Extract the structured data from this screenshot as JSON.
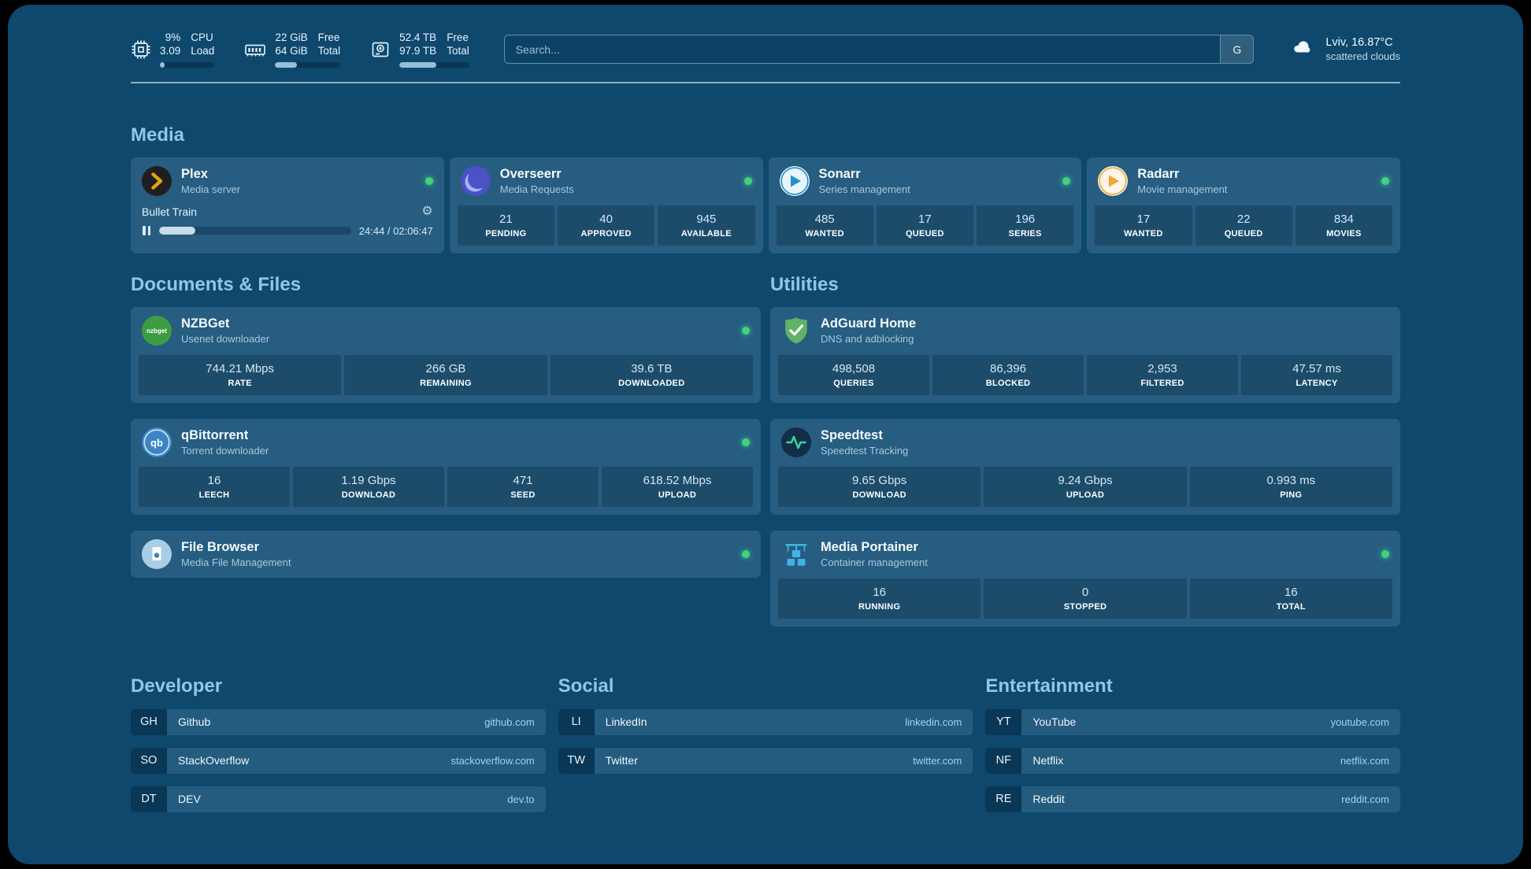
{
  "colors": {
    "background": "#0e486d",
    "accent": "#8fc7e9",
    "status_online": "#43d17c",
    "link": "#9ed2ef"
  },
  "topbar": {
    "cpu": {
      "value_top": "9%",
      "value_bottom": "3.09",
      "label_top": "CPU",
      "label_bottom": "Load",
      "progress": 9
    },
    "memory": {
      "value_top": "22 GiB",
      "value_bottom": "64 GiB",
      "label_top": "Free",
      "label_bottom": "Total",
      "progress": 34
    },
    "disk": {
      "value_top": "52.4 TB",
      "value_bottom": "97.9 TB",
      "label_top": "Free",
      "label_bottom": "Total",
      "progress": 53
    },
    "search": {
      "placeholder": "Search...",
      "provider_label": "G"
    },
    "weather": {
      "location": "Lviv, 16.87°C",
      "condition": "scattered clouds"
    }
  },
  "sections": {
    "media": {
      "title": "Media",
      "cards": [
        {
          "name": "Plex",
          "subtitle": "Media server",
          "status": "online",
          "now_playing": {
            "title": "Bullet Train",
            "time": "24:44 / 02:06:47",
            "progress": 19
          }
        },
        {
          "name": "Overseerr",
          "subtitle": "Media Requests",
          "status": "online",
          "stats": [
            {
              "value": "21",
              "label": "PENDING"
            },
            {
              "value": "40",
              "label": "APPROVED"
            },
            {
              "value": "945",
              "label": "AVAILABLE"
            }
          ]
        },
        {
          "name": "Sonarr",
          "subtitle": "Series management",
          "status": "online",
          "stats": [
            {
              "value": "485",
              "label": "WANTED"
            },
            {
              "value": "17",
              "label": "QUEUED"
            },
            {
              "value": "196",
              "label": "SERIES"
            }
          ]
        },
        {
          "name": "Radarr",
          "subtitle": "Movie management",
          "status": "online",
          "stats": [
            {
              "value": "17",
              "label": "WANTED"
            },
            {
              "value": "22",
              "label": "QUEUED"
            },
            {
              "value": "834",
              "label": "MOVIES"
            }
          ]
        }
      ]
    },
    "documents": {
      "title": "Documents & Files",
      "cards": [
        {
          "name": "NZBGet",
          "subtitle": "Usenet downloader",
          "status": "online",
          "stats": [
            {
              "value": "744.21 Mbps",
              "label": "RATE"
            },
            {
              "value": "266 GB",
              "label": "REMAINING"
            },
            {
              "value": "39.6 TB",
              "label": "DOWNLOADED"
            }
          ]
        },
        {
          "name": "qBittorrent",
          "subtitle": "Torrent downloader",
          "status": "online",
          "stats": [
            {
              "value": "16",
              "label": "LEECH"
            },
            {
              "value": "1.19 Gbps",
              "label": "DOWNLOAD"
            },
            {
              "value": "471",
              "label": "SEED"
            },
            {
              "value": "618.52 Mbps",
              "label": "UPLOAD"
            }
          ]
        },
        {
          "name": "File Browser",
          "subtitle": "Media File Management",
          "status": "online",
          "stats": []
        }
      ]
    },
    "utilities": {
      "title": "Utilities",
      "cards": [
        {
          "name": "AdGuard Home",
          "subtitle": "DNS and adblocking",
          "stats": [
            {
              "value": "498,508",
              "label": "QUERIES"
            },
            {
              "value": "86,396",
              "label": "BLOCKED"
            },
            {
              "value": "2,953",
              "label": "FILTERED"
            },
            {
              "value": "47.57 ms",
              "label": "LATENCY"
            }
          ]
        },
        {
          "name": "Speedtest",
          "subtitle": "Speedtest Tracking",
          "stats": [
            {
              "value": "9.65 Gbps",
              "label": "DOWNLOAD"
            },
            {
              "value": "9.24 Gbps",
              "label": "UPLOAD"
            },
            {
              "value": "0.993 ms",
              "label": "PING"
            }
          ]
        },
        {
          "name": "Media Portainer",
          "subtitle": "Container management",
          "status": "online",
          "stats": [
            {
              "value": "16",
              "label": "RUNNING"
            },
            {
              "value": "0",
              "label": "STOPPED"
            },
            {
              "value": "16",
              "label": "TOTAL"
            }
          ]
        }
      ]
    }
  },
  "bookmarks": [
    {
      "title": "Developer",
      "items": [
        {
          "abbr": "GH",
          "name": "Github",
          "domain": "github.com"
        },
        {
          "abbr": "SO",
          "name": "StackOverflow",
          "domain": "stackoverflow.com"
        },
        {
          "abbr": "DT",
          "name": "DEV",
          "domain": "dev.to"
        }
      ]
    },
    {
      "title": "Social",
      "items": [
        {
          "abbr": "LI",
          "name": "LinkedIn",
          "domain": "linkedin.com"
        },
        {
          "abbr": "TW",
          "name": "Twitter",
          "domain": "twitter.com"
        }
      ]
    },
    {
      "title": "Entertainment",
      "items": [
        {
          "abbr": "YT",
          "name": "YouTube",
          "domain": "youtube.com"
        },
        {
          "abbr": "NF",
          "name": "Netflix",
          "domain": "netflix.com"
        },
        {
          "abbr": "RE",
          "name": "Reddit",
          "domain": "reddit.com"
        }
      ]
    }
  ]
}
